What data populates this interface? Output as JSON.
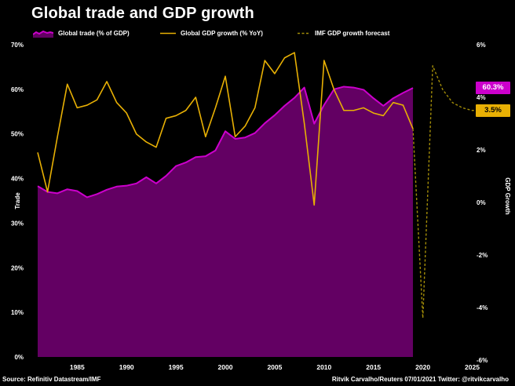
{
  "title": "Global trade and GDP growth",
  "legend": {
    "trade": {
      "label": "Global trade (% of GDP)"
    },
    "gdp": {
      "label": "Global GDP growth (% YoY)"
    },
    "forecast": {
      "label": "IMF GDP growth forecast"
    }
  },
  "annotations": {
    "trade_last": "60.3%",
    "forecast_last": "3.5%"
  },
  "footer": {
    "source": "Source: Refinitiv Datastream/IMF",
    "credit": "Ritvik Carvalho/Reuters 07/01/2021 Twitter: @ritvikcarvalho"
  },
  "colors": {
    "background": "#000000",
    "text": "#ffffff",
    "trade_fill": "#630063",
    "trade_edge": "#cc00cc",
    "gdp_line": "#e8b004",
    "forecast_line": "#a38d08",
    "trade_label_bg": "#cc00cc",
    "forecast_label_bg": "#e8b004"
  },
  "chart_data": {
    "type": "area",
    "title": "Global trade and GDP growth",
    "grid": false,
    "legend_position": "top",
    "x_axis": {
      "range": [
        1981,
        2025
      ],
      "ticks": [
        1985,
        1990,
        1995,
        2000,
        2005,
        2010,
        2015,
        2020,
        2025
      ]
    },
    "left_axis": {
      "label": "Trade",
      "range": [
        0,
        70
      ],
      "ticks": [
        70,
        60,
        50,
        40,
        30,
        20,
        10,
        0
      ],
      "tick_suffix": "%"
    },
    "right_axis": {
      "label": "GDP Growth",
      "range": [
        -6,
        6
      ],
      "ticks": [
        6,
        4,
        2,
        0,
        -2,
        -4,
        -6
      ],
      "tick_suffix": "%"
    },
    "series": [
      {
        "name": "Global trade (% of GDP)",
        "type": "area",
        "axis": "left",
        "x": [
          1981,
          1982,
          1983,
          1984,
          1985,
          1986,
          1987,
          1988,
          1989,
          1990,
          1991,
          1992,
          1993,
          1994,
          1995,
          1996,
          1997,
          1998,
          1999,
          2000,
          2001,
          2002,
          2003,
          2004,
          2005,
          2006,
          2007,
          2008,
          2009,
          2010,
          2011,
          2012,
          2013,
          2014,
          2015,
          2016,
          2017,
          2018,
          2019
        ],
        "values": [
          38.3,
          37.0,
          36.7,
          37.6,
          37.2,
          35.8,
          36.5,
          37.5,
          38.2,
          38.4,
          38.9,
          40.3,
          38.9,
          40.6,
          42.8,
          43.6,
          44.8,
          45.0,
          46.3,
          50.6,
          48.9,
          49.2,
          50.2,
          52.4,
          54.2,
          56.3,
          58.1,
          60.4,
          52.3,
          56.5,
          60.0,
          60.6,
          60.4,
          59.9,
          58.0,
          56.3,
          58.0,
          59.2,
          60.3
        ],
        "last_value_label": "60.3%"
      },
      {
        "name": "Global GDP growth (% YoY)",
        "type": "line",
        "axis": "right",
        "x": [
          1981,
          1982,
          1983,
          1984,
          1985,
          1986,
          1987,
          1988,
          1989,
          1990,
          1991,
          1992,
          1993,
          1994,
          1995,
          1996,
          1997,
          1998,
          1999,
          2000,
          2001,
          2002,
          2003,
          2004,
          2005,
          2006,
          2007,
          2008,
          2009,
          2010,
          2011,
          2012,
          2013,
          2014,
          2015,
          2016,
          2017,
          2018,
          2019
        ],
        "values": [
          1.9,
          0.4,
          2.5,
          4.5,
          3.6,
          3.7,
          3.9,
          4.6,
          3.8,
          3.4,
          2.6,
          2.3,
          2.1,
          3.2,
          3.3,
          3.5,
          4.0,
          2.5,
          3.6,
          4.8,
          2.5,
          2.9,
          3.6,
          5.4,
          4.9,
          5.5,
          5.7,
          3.0,
          -0.1,
          5.4,
          4.3,
          3.5,
          3.5,
          3.6,
          3.4,
          3.3,
          3.8,
          3.7,
          2.8
        ]
      },
      {
        "name": "IMF GDP growth forecast",
        "type": "dashed-line",
        "axis": "right",
        "x": [
          2019,
          2020,
          2021,
          2022,
          2023,
          2024,
          2025
        ],
        "values": [
          2.8,
          -4.4,
          5.2,
          4.3,
          3.8,
          3.6,
          3.5
        ],
        "last_value_label": "3.5%"
      }
    ]
  }
}
